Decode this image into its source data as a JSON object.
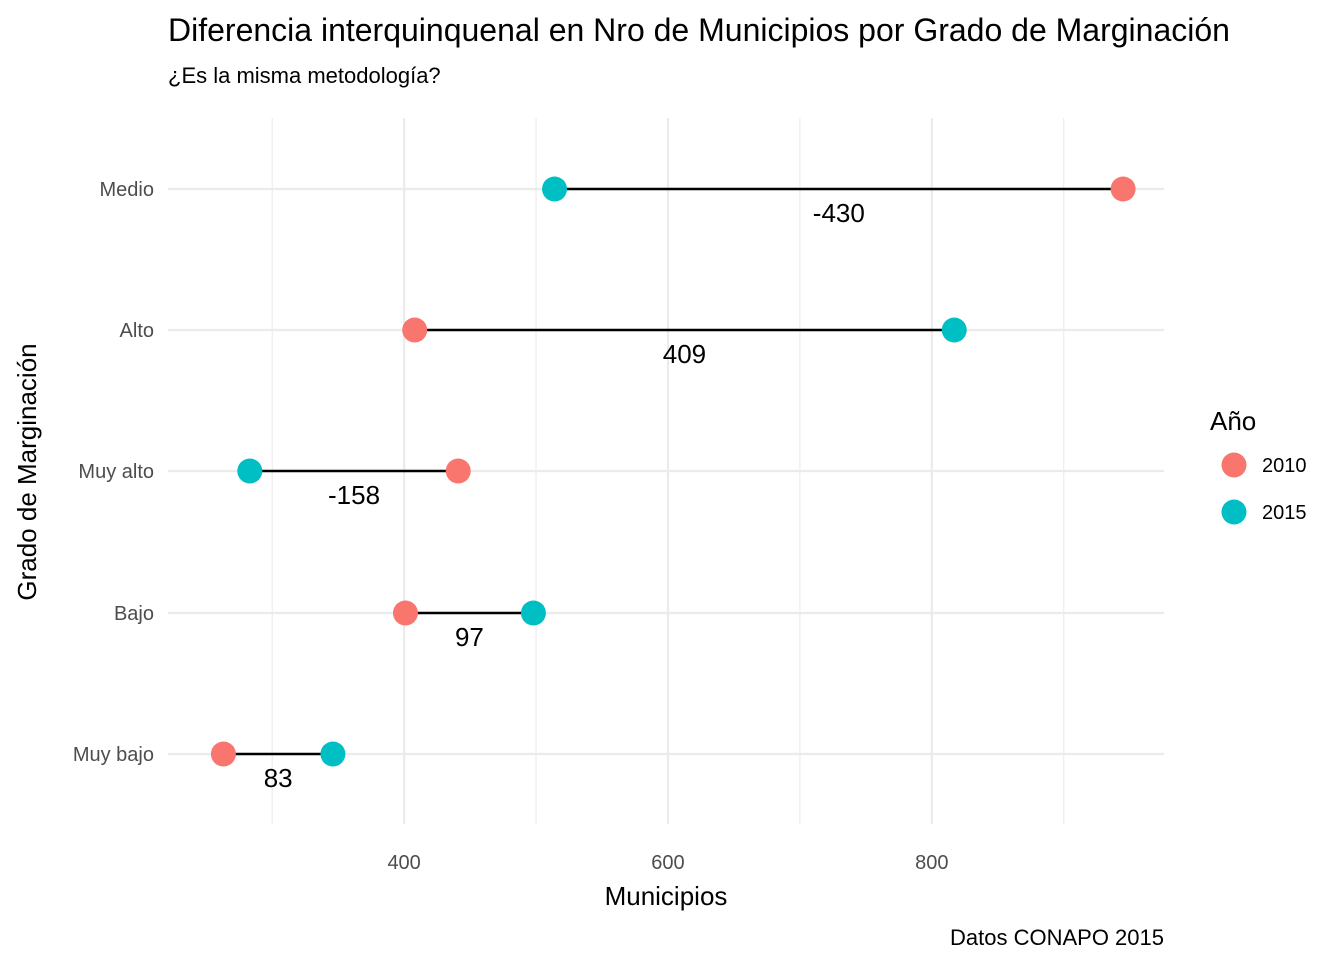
{
  "chart_data": {
    "type": "dumbbell",
    "title": "Diferencia interquinquenal en Nro de Municipios por Grado de Marginación",
    "subtitle": "¿Es la misma metodología?",
    "xlabel": "Municipios",
    "ylabel": "Grado de Marginación",
    "caption": "Datos CONAPO 2015",
    "xlim": [
      221,
      976
    ],
    "x_major_ticks": [
      400,
      600,
      800
    ],
    "x_minor_ticks": [
      300,
      500,
      700,
      900
    ],
    "grid": true,
    "legend": {
      "title": "Año",
      "position": "right",
      "entries": [
        {
          "label": "2010",
          "color": "#F8766D"
        },
        {
          "label": "2015",
          "color": "#00BFC4"
        }
      ]
    },
    "categories": [
      "Medio",
      "Alto",
      "Muy alto",
      "Bajo",
      "Muy bajo"
    ],
    "series": [
      {
        "name": "2010",
        "color": "#F8766D",
        "values": [
          945,
          408,
          441,
          401,
          263
        ]
      },
      {
        "name": "2015",
        "color": "#00BFC4",
        "values": [
          514,
          817,
          283,
          498,
          346
        ]
      }
    ],
    "differences": [
      "-430",
      "409",
      "-158",
      "97",
      "83"
    ]
  }
}
